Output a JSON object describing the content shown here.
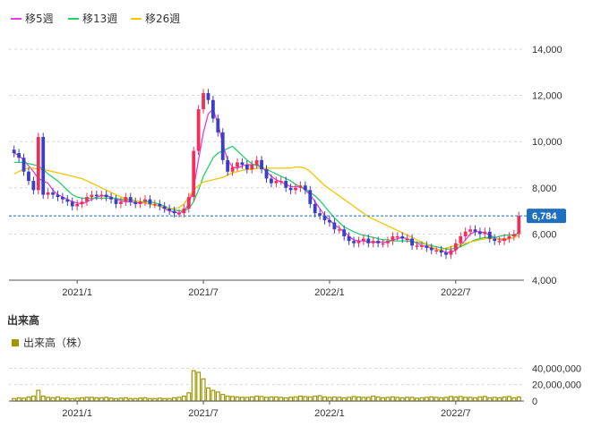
{
  "colors": {
    "up": "#f0305a",
    "down": "#3b3fc4",
    "ma5": "#e040e0",
    "ma13": "#22d36a",
    "ma26": "#f5c400",
    "volume": "#a09600",
    "current_tag": "#1f6fbf",
    "grid": "#d9d9d9"
  },
  "legend": {
    "ma5_label": "移5週",
    "ma13_label": "移13週",
    "ma26_label": "移26週"
  },
  "volume_section": {
    "title": "出来高",
    "legend_label": "出来高（株）"
  },
  "current_price": {
    "value": 6784,
    "label": "6,784"
  },
  "chart_data": [
    {
      "type": "candlestick",
      "title": "",
      "x_labels": [
        "2021/1",
        "2021/7",
        "2022/1",
        "2022/7"
      ],
      "y_ticks": [
        "4,000",
        "6,000",
        "8,000",
        "10,000",
        "12,000",
        "14,000"
      ],
      "ylim": [
        4000,
        14000
      ],
      "grid": true,
      "legend_position": "top-left",
      "series": [
        {
          "name": "close",
          "values": [
            9500,
            9300,
            8700,
            8300,
            7900,
            10200,
            7700,
            7800,
            7700,
            7600,
            7500,
            7400,
            7200,
            7300,
            7400,
            7600,
            7700,
            7650,
            7700,
            7600,
            7500,
            7300,
            7400,
            7600,
            7400,
            7300,
            7400,
            7500,
            7300,
            7300,
            7200,
            7100,
            7000,
            6900,
            6900,
            7100,
            7600,
            9600,
            11400,
            12100,
            11800,
            11000,
            10400,
            9200,
            8700,
            8900,
            9100,
            9000,
            8800,
            9000,
            9200,
            8800,
            8400,
            8200,
            8300,
            8300,
            8000,
            7900,
            8000,
            8100,
            7900,
            7300,
            6900,
            6800,
            6600,
            6500,
            6200,
            6200,
            5900,
            5700,
            5600,
            5700,
            5800,
            5600,
            5700,
            5600,
            5600,
            5700,
            5900,
            5900,
            5800,
            5800,
            5500,
            5500,
            5500,
            5400,
            5300,
            5300,
            5200,
            5100,
            5300,
            5600,
            5900,
            6100,
            6200,
            6100,
            6000,
            6100,
            5800,
            5700,
            5700,
            5800,
            5900,
            6000,
            6784
          ]
        },
        {
          "name": "移5週",
          "values": [
            9500,
            9400,
            9200,
            8950,
            8700,
            8400,
            8300,
            8200,
            7900,
            7700,
            7600,
            7500,
            7400,
            7350,
            7300,
            7400,
            7500,
            7600,
            7650,
            7650,
            7600,
            7500,
            7450,
            7400,
            7400,
            7350,
            7350,
            7350,
            7300,
            7250,
            7200,
            7100,
            7000,
            6950,
            6900,
            7000,
            7300,
            8000,
            9200,
            10400,
            11200,
            11400,
            10800,
            9900,
            9200,
            8900,
            8850,
            8950,
            9000,
            9000,
            9000,
            8900,
            8700,
            8500,
            8350,
            8250,
            8150,
            8050,
            8050,
            8050,
            7900,
            7700,
            7400,
            7100,
            6800,
            6600,
            6400,
            6250,
            6100,
            5900,
            5750,
            5700,
            5700,
            5650,
            5650,
            5650,
            5650,
            5650,
            5750,
            5800,
            5850,
            5800,
            5700,
            5600,
            5500,
            5450,
            5400,
            5350,
            5300,
            5200,
            5200,
            5300,
            5500,
            5750,
            6000,
            6100,
            6100,
            6050,
            5950,
            5850,
            5750,
            5750,
            5800,
            5850,
            6100
          ]
        },
        {
          "name": "移13週",
          "values": [
            9100,
            9100,
            9100,
            9050,
            9000,
            8950,
            8800,
            8600,
            8450,
            8300,
            8100,
            7900,
            7700,
            7600,
            7550,
            7550,
            7550,
            7550,
            7550,
            7550,
            7550,
            7550,
            7500,
            7500,
            7450,
            7450,
            7400,
            7400,
            7400,
            7350,
            7300,
            7200,
            7100,
            7050,
            7000,
            7000,
            7100,
            7400,
            7900,
            8500,
            8900,
            9300,
            9500,
            9600,
            9700,
            9800,
            9600,
            9400,
            9200,
            9050,
            8950,
            8900,
            8800,
            8700,
            8600,
            8500,
            8400,
            8300,
            8150,
            8050,
            7950,
            7800,
            7650,
            7450,
            7200,
            6950,
            6700,
            6500,
            6300,
            6200,
            6100,
            6000,
            5950,
            5900,
            5850,
            5800,
            5750,
            5750,
            5700,
            5700,
            5700,
            5700,
            5650,
            5650,
            5600,
            5550,
            5500,
            5450,
            5400,
            5350,
            5350,
            5400,
            5450,
            5550,
            5650,
            5750,
            5800,
            5850,
            5850,
            5850,
            5900,
            5950,
            5950,
            5950,
            6050
          ]
        },
        {
          "name": "移26週",
          "values": [
            8600,
            8700,
            8800,
            8850,
            8850,
            8800,
            8800,
            8750,
            8700,
            8650,
            8600,
            8550,
            8500,
            8450,
            8400,
            8300,
            8200,
            8100,
            8000,
            7900,
            7800,
            7700,
            7600,
            7550,
            7500,
            7450,
            7400,
            7350,
            7300,
            7250,
            7200,
            7150,
            7100,
            7100,
            7150,
            7300,
            7600,
            7900,
            8100,
            8250,
            8300,
            8350,
            8400,
            8450,
            8550,
            8650,
            8700,
            8750,
            8800,
            8800,
            8850,
            8850,
            8850,
            8850,
            8850,
            8850,
            8850,
            8850,
            8900,
            8900,
            8850,
            8700,
            8500,
            8300,
            8100,
            7950,
            7800,
            7650,
            7500,
            7350,
            7200,
            7050,
            6900,
            6750,
            6650,
            6550,
            6450,
            6350,
            6250,
            6150,
            6050,
            5950,
            5850,
            5750,
            5650,
            5550,
            5450,
            5350,
            5300,
            5400,
            5450,
            5500,
            5550,
            5600,
            5650,
            5700,
            5750,
            5800,
            5800,
            5800,
            5800,
            5800,
            5800,
            5850,
            5950
          ]
        }
      ]
    },
    {
      "type": "bar",
      "title": "",
      "x_labels": [
        "2021/1",
        "2021/7",
        "2022/1",
        "2022/7"
      ],
      "y_ticks": [
        "0",
        "20,000,000",
        "40,000,000"
      ],
      "ylim": [
        0,
        48000000
      ],
      "series": [
        {
          "name": "出来高（株）",
          "values": [
            3000000,
            4000000,
            3500000,
            5000000,
            6000000,
            13000000,
            6000000,
            4500000,
            4000000,
            5000000,
            3500000,
            3500000,
            3000000,
            3500000,
            4000000,
            4500000,
            4500000,
            4000000,
            4000000,
            4500000,
            3500000,
            3000000,
            3500000,
            4000000,
            3000000,
            3000000,
            3500000,
            4000000,
            3000000,
            3000000,
            3500000,
            3000000,
            3000000,
            4000000,
            4500000,
            6000000,
            10000000,
            37000000,
            35000000,
            27000000,
            16000000,
            13000000,
            11000000,
            8000000,
            6000000,
            5500000,
            5000000,
            4500000,
            4500000,
            5000000,
            6000000,
            5500000,
            4500000,
            5000000,
            5000000,
            4500000,
            4000000,
            4500000,
            5000000,
            6000000,
            5500000,
            5000000,
            6000000,
            6500000,
            5000000,
            4500000,
            5000000,
            4500000,
            4000000,
            4500000,
            5500000,
            5000000,
            4500000,
            4500000,
            6000000,
            5000000,
            4000000,
            4500000,
            5000000,
            4500000,
            4000000,
            4500000,
            4500000,
            3500000,
            4000000,
            4500000,
            5000000,
            4500000,
            4000000,
            4500000,
            5500000,
            5000000,
            5500000,
            4500000,
            4500000,
            4000000,
            5000000,
            5500000,
            4000000,
            4500000,
            4000000,
            5000000,
            5500000,
            4000000,
            5000000
          ]
        }
      ]
    }
  ]
}
